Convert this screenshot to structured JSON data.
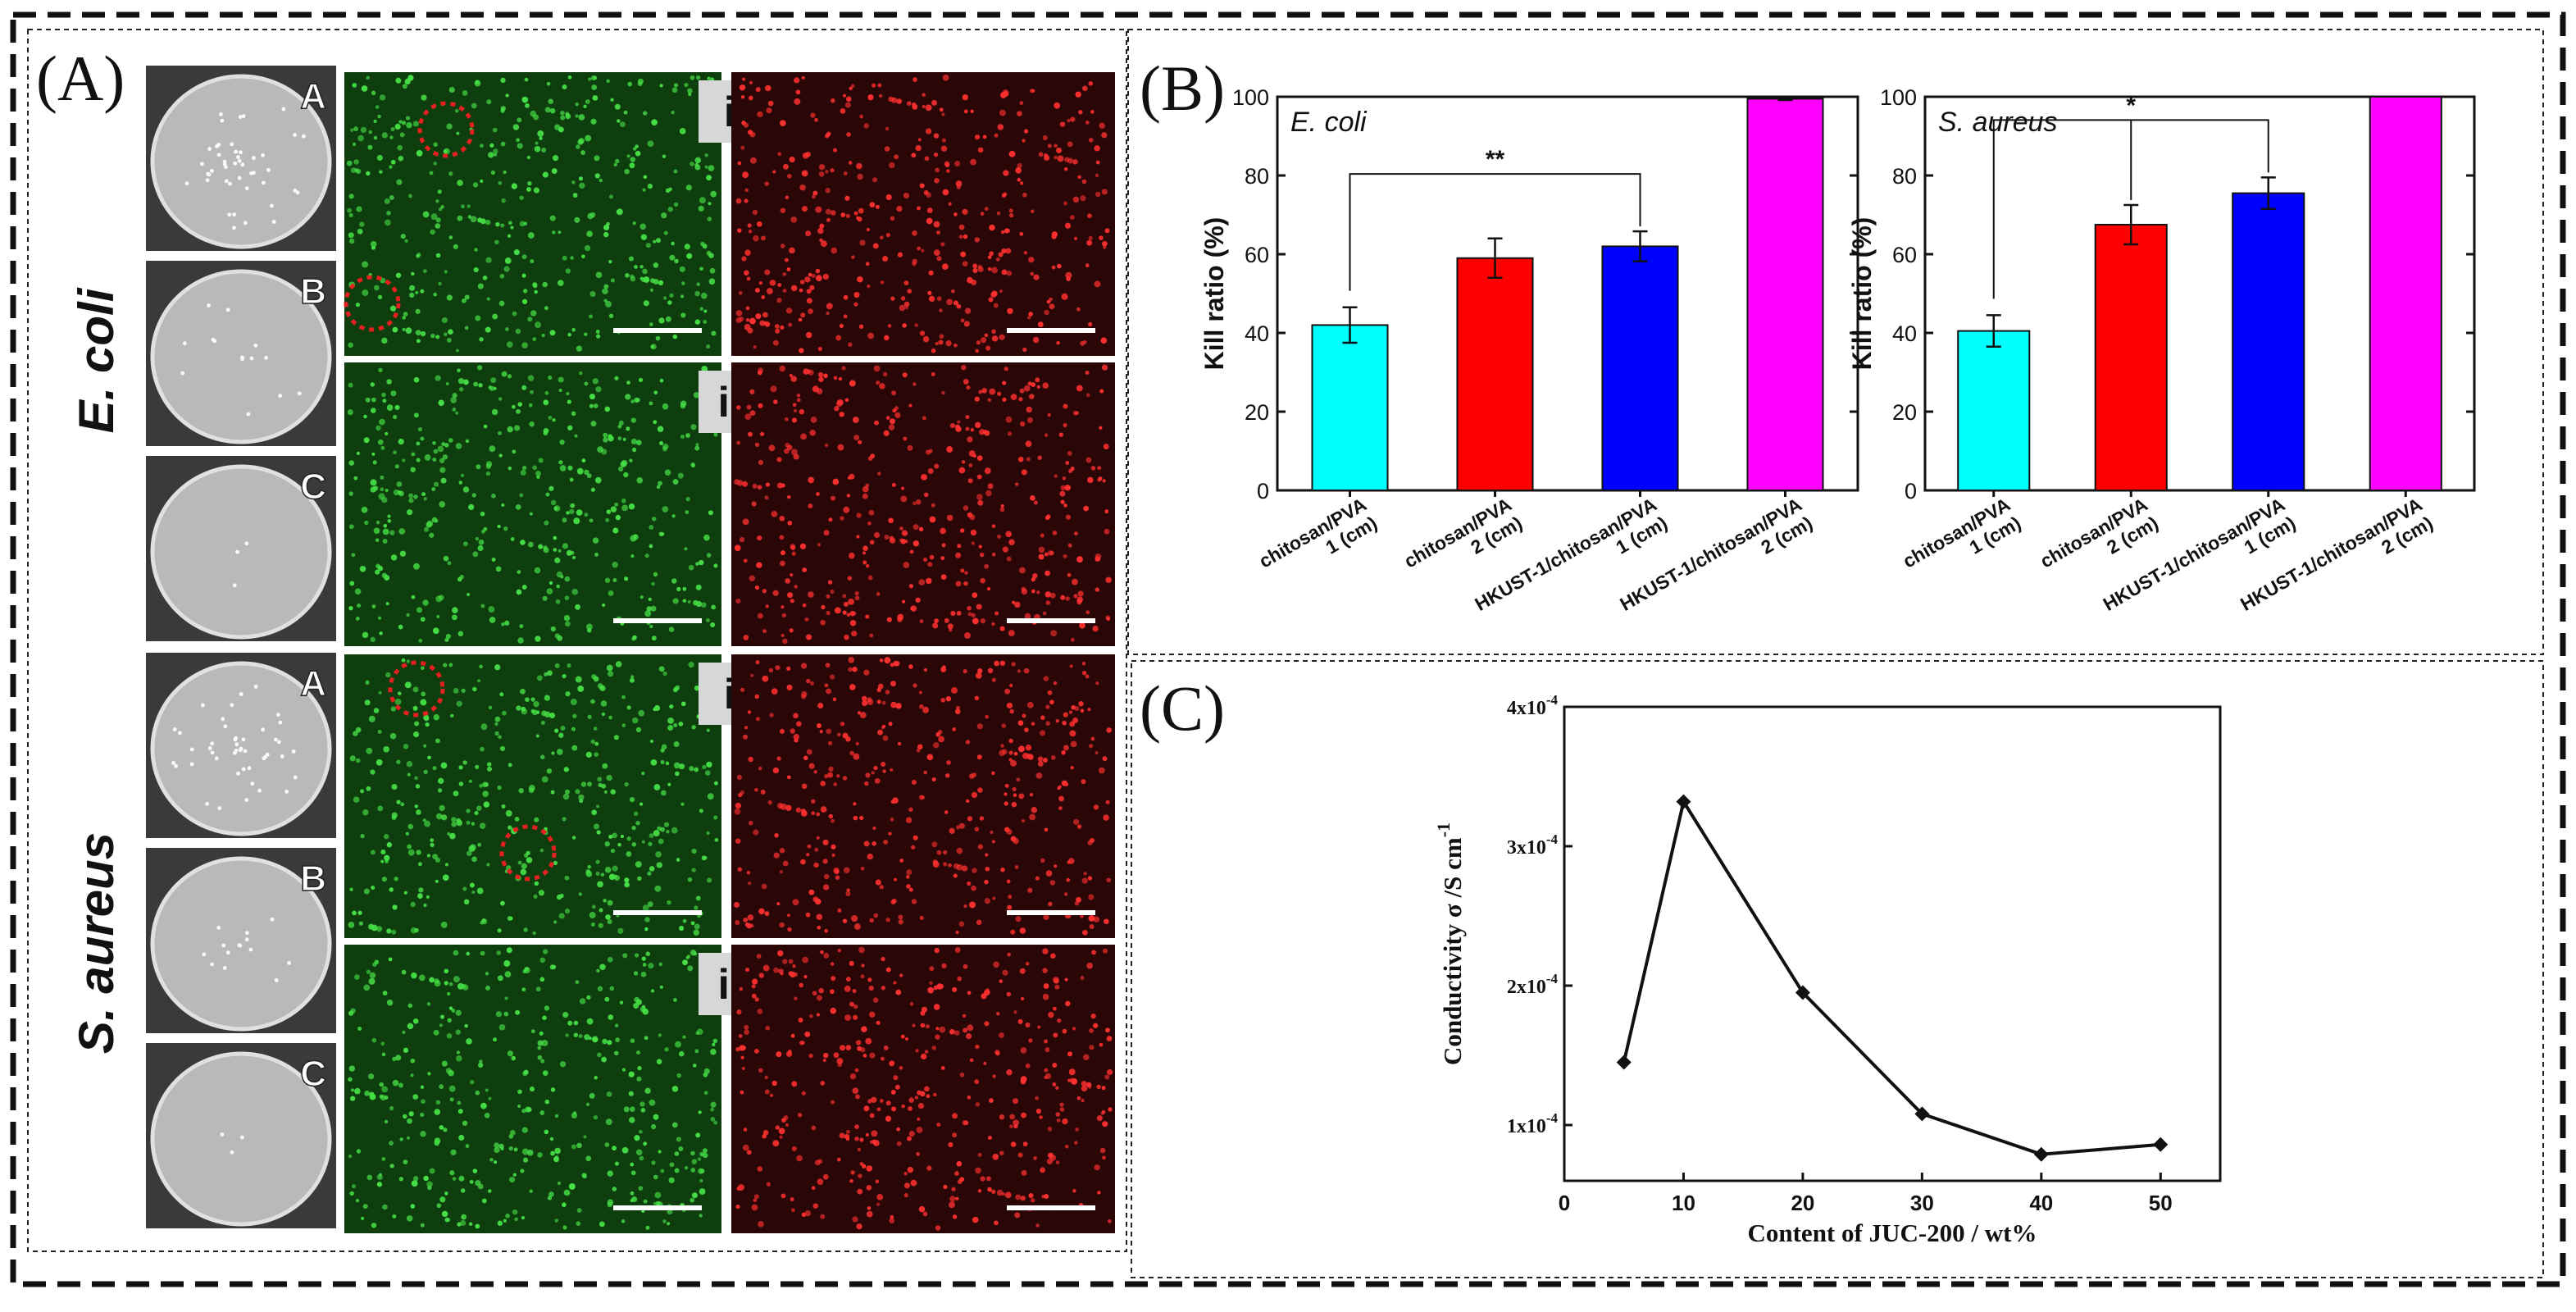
{
  "panel_a": {
    "letter": "(A)",
    "species": [
      "E. coli",
      "S. aureus"
    ],
    "plate_labels": [
      "A",
      "B",
      "C"
    ],
    "row_labels": [
      "i",
      "ii"
    ],
    "colors": {
      "live_bg": "#0e3d0e",
      "live_dot": "#46e046",
      "dead_bg": "#2a0606",
      "dead_dot": "#ff3030",
      "circle": "#e52020"
    }
  },
  "panel_b": {
    "letter": "(B)"
  },
  "panel_c": {
    "letter": "(C)"
  },
  "chart_data": [
    {
      "type": "bar",
      "title": "E. coli",
      "ylabel": "Kill ratio (%)",
      "xlabel": "",
      "ylim": [
        0,
        100
      ],
      "yticks": [
        0,
        20,
        40,
        60,
        80,
        100
      ],
      "categories": [
        [
          "chitosan/PVA",
          "1 (cm)"
        ],
        [
          "chitosan/PVA",
          "2 (cm)"
        ],
        [
          "HKUST-1/chitosan/PVA",
          "1 (cm)"
        ],
        [
          "HKUST-1/chitosan/PVA",
          "2 (cm)"
        ]
      ],
      "values": [
        42,
        59,
        62,
        99.5
      ],
      "errors": [
        4.5,
        5,
        3.8,
        0.3
      ],
      "colors": [
        "#00ffff",
        "#ff0000",
        "#0000ff",
        "#ff00ff"
      ],
      "significance": {
        "from": 0,
        "to": 2,
        "label": "**"
      }
    },
    {
      "type": "bar",
      "title": "S. aureus",
      "ylabel": "Kill ratio (%)",
      "xlabel": "",
      "ylim": [
        0,
        100
      ],
      "yticks": [
        0,
        20,
        40,
        60,
        80,
        100
      ],
      "categories": [
        [
          "chitosan/PVA",
          "1 (cm)"
        ],
        [
          "chitosan/PVA",
          "2 (cm)"
        ],
        [
          "HKUST-1/chitosan/PVA",
          "1 (cm)"
        ],
        [
          "HKUST-1/chitosan/PVA",
          "2 (cm)"
        ]
      ],
      "values": [
        40.5,
        67.5,
        75.5,
        100
      ],
      "errors": [
        4,
        5,
        4,
        0
      ],
      "colors": [
        "#00ffff",
        "#ff0000",
        "#0000ff",
        "#ff00ff"
      ],
      "significance": {
        "from": 0,
        "to": 2,
        "label": "*",
        "midTick": 1
      }
    },
    {
      "type": "line",
      "title": "",
      "xlabel": "Content of JUC-200 / wt%",
      "ylabel": "Conductivity σ /S cm",
      "ylabel_sup": "-1",
      "xlim": [
        0,
        55
      ],
      "xticks": [
        0,
        10,
        20,
        30,
        40,
        50
      ],
      "ylim": [
        6e-05,
        0.0004
      ],
      "yticks": [
        {
          "value": 0.0001,
          "label": "1x10",
          "exp": "-4"
        },
        {
          "value": 0.0002,
          "label": "2x10",
          "exp": "-4"
        },
        {
          "value": 0.0003,
          "label": "3x10",
          "exp": "-4"
        },
        {
          "value": 0.0004,
          "label": "4x10",
          "exp": "-4"
        }
      ],
      "x": [
        5,
        10,
        20,
        30,
        40,
        50
      ],
      "y": [
        0.000145,
        0.000332,
        0.000195,
        0.000108,
        7.9e-05,
        8.6e-05
      ]
    }
  ]
}
